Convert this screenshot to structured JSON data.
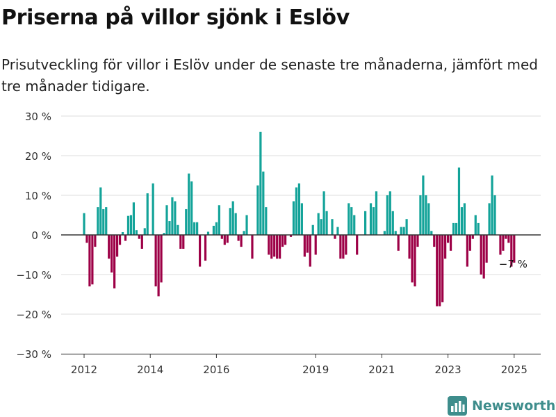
{
  "title": "Priserna på villor sjönk i Eslöv",
  "subtitle": "Prisutveckling för villor i Eslöv under de senaste tre månaderna, jämfört med tre månader tidigare.",
  "brand": {
    "name": "Newsworthy",
    "icon": "newsworthy-logo-icon",
    "color": "#3e8d8c"
  },
  "colors": {
    "positive": "#13a399",
    "negative": "#9d0046",
    "grid": "#dddddd",
    "axis": "#333333"
  },
  "chart_data": {
    "type": "bar",
    "ylabel": "",
    "xlabel": "",
    "ylim": [
      -30,
      30
    ],
    "y_ticks": [
      30,
      20,
      10,
      0,
      -10,
      -20,
      -30
    ],
    "y_tick_labels": [
      "30 %",
      "20 %",
      "10 %",
      "0 %",
      "−10 %",
      "−20 %",
      "−30 %"
    ],
    "x_ticks": [
      2012,
      2014,
      2016,
      2019,
      2021,
      2023,
      2025
    ],
    "x_tick_labels": [
      "2012",
      "2014",
      "2016",
      "2019",
      "2021",
      "2023",
      "2025"
    ],
    "grid": true,
    "series": [
      {
        "unit": "%",
        "points": [
          {
            "x": "2012-01",
            "y": 5.5
          },
          {
            "x": "2012-02",
            "y": -2
          },
          {
            "x": "2012-03",
            "y": -13
          },
          {
            "x": "2012-04",
            "y": -12.5
          },
          {
            "x": "2012-05",
            "y": -3
          },
          {
            "x": "2012-06",
            "y": 7
          },
          {
            "x": "2012-07",
            "y": 12
          },
          {
            "x": "2012-08",
            "y": 6.5
          },
          {
            "x": "2012-09",
            "y": 7
          },
          {
            "x": "2012-10",
            "y": -6
          },
          {
            "x": "2012-11",
            "y": -9.5
          },
          {
            "x": "2012-12",
            "y": -13.5
          },
          {
            "x": "2013-01",
            "y": -5.5
          },
          {
            "x": "2013-02",
            "y": -2.5
          },
          {
            "x": "2013-03",
            "y": 0.7
          },
          {
            "x": "2013-04",
            "y": -1.5
          },
          {
            "x": "2013-05",
            "y": 4.8
          },
          {
            "x": "2013-06",
            "y": 5
          },
          {
            "x": "2013-07",
            "y": 8.2
          },
          {
            "x": "2013-08",
            "y": 1.2
          },
          {
            "x": "2013-09",
            "y": -1
          },
          {
            "x": "2013-10",
            "y": -3.5
          },
          {
            "x": "2013-11",
            "y": 1.7
          },
          {
            "x": "2013-12",
            "y": 10.5
          },
          {
            "x": "2014-01",
            "y": 0
          },
          {
            "x": "2014-02",
            "y": 13
          },
          {
            "x": "2014-03",
            "y": -13
          },
          {
            "x": "2014-04",
            "y": -15.5
          },
          {
            "x": "2014-05",
            "y": -12
          },
          {
            "x": "2014-06",
            "y": 0.5
          },
          {
            "x": "2014-07",
            "y": 7.5
          },
          {
            "x": "2014-08",
            "y": 3.5
          },
          {
            "x": "2014-09",
            "y": 9.5
          },
          {
            "x": "2014-10",
            "y": 8.5
          },
          {
            "x": "2014-11",
            "y": 2.5
          },
          {
            "x": "2014-12",
            "y": -3.5
          },
          {
            "x": "2015-01",
            "y": -3.5
          },
          {
            "x": "2015-02",
            "y": 6.5
          },
          {
            "x": "2015-03",
            "y": 15.5
          },
          {
            "x": "2015-04",
            "y": 13.5
          },
          {
            "x": "2015-05",
            "y": 3.2
          },
          {
            "x": "2015-06",
            "y": 3.2
          },
          {
            "x": "2015-07",
            "y": -8
          },
          {
            "x": "2015-08",
            "y": 0
          },
          {
            "x": "2015-09",
            "y": -6.5
          },
          {
            "x": "2015-10",
            "y": 0.8
          },
          {
            "x": "2015-11",
            "y": 0
          },
          {
            "x": "2015-12",
            "y": 2.3
          },
          {
            "x": "2016-01",
            "y": 3.2
          },
          {
            "x": "2016-02",
            "y": 7.5
          },
          {
            "x": "2016-03",
            "y": -1
          },
          {
            "x": "2016-04",
            "y": -2.5
          },
          {
            "x": "2016-05",
            "y": -2
          },
          {
            "x": "2016-06",
            "y": 6.8
          },
          {
            "x": "2016-07",
            "y": 8.5
          },
          {
            "x": "2016-08",
            "y": 5.5
          },
          {
            "x": "2016-09",
            "y": -1.5
          },
          {
            "x": "2016-10",
            "y": -3
          },
          {
            "x": "2016-11",
            "y": 1
          },
          {
            "x": "2016-12",
            "y": 5
          },
          {
            "x": "2017-01",
            "y": 0
          },
          {
            "x": "2017-02",
            "y": -6
          },
          {
            "x": "2017-03",
            "y": 0
          },
          {
            "x": "2017-04",
            "y": 12.5
          },
          {
            "x": "2017-05",
            "y": 26
          },
          {
            "x": "2017-06",
            "y": 16
          },
          {
            "x": "2017-07",
            "y": 7
          },
          {
            "x": "2017-08",
            "y": -5
          },
          {
            "x": "2017-09",
            "y": -6
          },
          {
            "x": "2017-10",
            "y": -5.5
          },
          {
            "x": "2017-11",
            "y": -6
          },
          {
            "x": "2017-12",
            "y": -6
          },
          {
            "x": "2018-01",
            "y": -3
          },
          {
            "x": "2018-02",
            "y": -2.5
          },
          {
            "x": "2018-03",
            "y": 0
          },
          {
            "x": "2018-04",
            "y": -0.5
          },
          {
            "x": "2018-05",
            "y": 8.5
          },
          {
            "x": "2018-06",
            "y": 12
          },
          {
            "x": "2018-07",
            "y": 13
          },
          {
            "x": "2018-08",
            "y": 8
          },
          {
            "x": "2018-09",
            "y": -5.5
          },
          {
            "x": "2018-10",
            "y": -4.5
          },
          {
            "x": "2018-11",
            "y": -8
          },
          {
            "x": "2018-12",
            "y": 2.5
          },
          {
            "x": "2019-01",
            "y": -5
          },
          {
            "x": "2019-02",
            "y": 5.5
          },
          {
            "x": "2019-03",
            "y": 4
          },
          {
            "x": "2019-04",
            "y": 11
          },
          {
            "x": "2019-05",
            "y": 6
          },
          {
            "x": "2019-06",
            "y": 0
          },
          {
            "x": "2019-07",
            "y": 4
          },
          {
            "x": "2019-08",
            "y": -1
          },
          {
            "x": "2019-09",
            "y": 2
          },
          {
            "x": "2019-10",
            "y": -6
          },
          {
            "x": "2019-11",
            "y": -6
          },
          {
            "x": "2019-12",
            "y": -5
          },
          {
            "x": "2020-01",
            "y": 8
          },
          {
            "x": "2020-02",
            "y": 7
          },
          {
            "x": "2020-03",
            "y": 5
          },
          {
            "x": "2020-04",
            "y": -5
          },
          {
            "x": "2020-05",
            "y": 0
          },
          {
            "x": "2020-06",
            "y": 0
          },
          {
            "x": "2020-07",
            "y": 6
          },
          {
            "x": "2020-08",
            "y": 0
          },
          {
            "x": "2020-09",
            "y": 8
          },
          {
            "x": "2020-10",
            "y": 7
          },
          {
            "x": "2020-11",
            "y": 11
          },
          {
            "x": "2020-12",
            "y": 0
          },
          {
            "x": "2021-01",
            "y": 0
          },
          {
            "x": "2021-02",
            "y": 1
          },
          {
            "x": "2021-03",
            "y": 10
          },
          {
            "x": "2021-04",
            "y": 11
          },
          {
            "x": "2021-05",
            "y": 6
          },
          {
            "x": "2021-06",
            "y": 1
          },
          {
            "x": "2021-07",
            "y": -4
          },
          {
            "x": "2021-08",
            "y": 2
          },
          {
            "x": "2021-09",
            "y": 2
          },
          {
            "x": "2021-10",
            "y": 4
          },
          {
            "x": "2021-11",
            "y": -6
          },
          {
            "x": "2021-12",
            "y": -12
          },
          {
            "x": "2022-01",
            "y": -13
          },
          {
            "x": "2022-02",
            "y": -3
          },
          {
            "x": "2022-03",
            "y": 10
          },
          {
            "x": "2022-04",
            "y": 15
          },
          {
            "x": "2022-05",
            "y": 10
          },
          {
            "x": "2022-06",
            "y": 8
          },
          {
            "x": "2022-07",
            "y": 1
          },
          {
            "x": "2022-08",
            "y": -3
          },
          {
            "x": "2022-09",
            "y": -18
          },
          {
            "x": "2022-10",
            "y": -18
          },
          {
            "x": "2022-11",
            "y": -17
          },
          {
            "x": "2022-12",
            "y": -6
          },
          {
            "x": "2023-01",
            "y": -2
          },
          {
            "x": "2023-02",
            "y": -4
          },
          {
            "x": "2023-03",
            "y": 3
          },
          {
            "x": "2023-04",
            "y": 3
          },
          {
            "x": "2023-05",
            "y": 17
          },
          {
            "x": "2023-06",
            "y": 7
          },
          {
            "x": "2023-07",
            "y": 8
          },
          {
            "x": "2023-08",
            "y": -8
          },
          {
            "x": "2023-09",
            "y": -4
          },
          {
            "x": "2023-10",
            "y": -1
          },
          {
            "x": "2023-11",
            "y": 5
          },
          {
            "x": "2023-12",
            "y": 3
          },
          {
            "x": "2024-01",
            "y": -10
          },
          {
            "x": "2024-02",
            "y": -11
          },
          {
            "x": "2024-03",
            "y": -7
          },
          {
            "x": "2024-04",
            "y": 8
          },
          {
            "x": "2024-05",
            "y": 15
          },
          {
            "x": "2024-06",
            "y": 10
          },
          {
            "x": "2024-07",
            "y": 0
          },
          {
            "x": "2024-08",
            "y": -5
          },
          {
            "x": "2024-09",
            "y": -4
          },
          {
            "x": "2024-10",
            "y": -1
          },
          {
            "x": "2024-11",
            "y": -2
          },
          {
            "x": "2024-12",
            "y": -8
          },
          {
            "x": "2025-01",
            "y": -7
          }
        ]
      }
    ],
    "annotations": [
      {
        "x": "2025-01",
        "y": -7,
        "label": "−7 %"
      }
    ]
  }
}
